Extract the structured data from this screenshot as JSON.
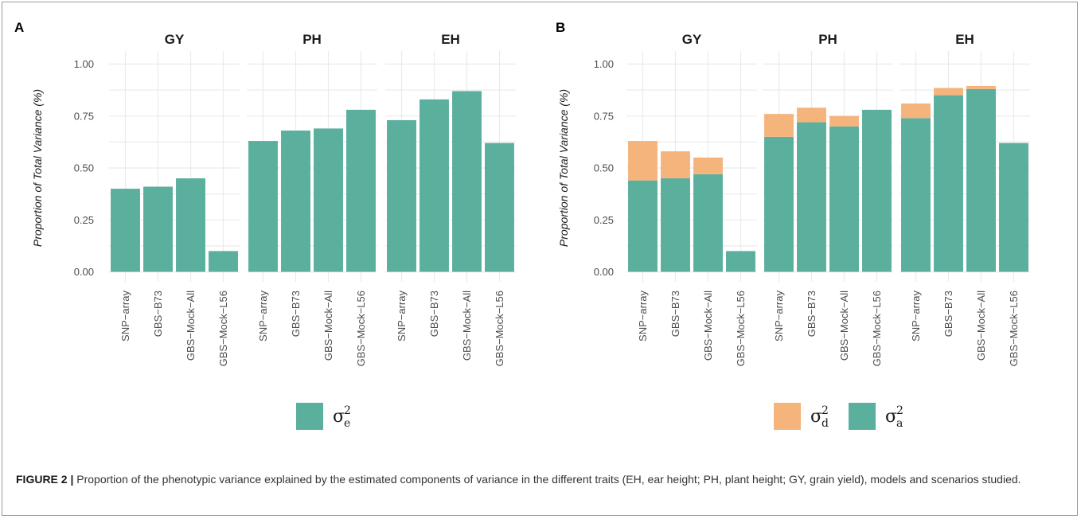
{
  "colors": {
    "sigma_e": "#5aaf9d",
    "sigma_a": "#5aaf9d",
    "sigma_d": "#f5b47c",
    "grid": "#ebebeb"
  },
  "chart_data": [
    {
      "type": "bar",
      "panel_label": "A",
      "ylabel": "Proportion of Total Variance (%)",
      "xlabel": "",
      "ylim": [
        0,
        1.05
      ],
      "yticks": [
        "0.00",
        "0.25",
        "0.50",
        "0.75",
        "1.00"
      ],
      "ytick_values": [
        0,
        0.25,
        0.5,
        0.75,
        1.0
      ],
      "grid": true,
      "legend_position": "bottom",
      "categories": [
        "SNP−array",
        "GBS−B73",
        "GBS−Mock−All",
        "GBS−Mock−L56"
      ],
      "facets": [
        {
          "title": "GY",
          "series": [
            {
              "name": "σe²",
              "key": "sigma_e",
              "values": [
                0.4,
                0.41,
                0.45,
                0.1
              ]
            }
          ]
        },
        {
          "title": "PH",
          "series": [
            {
              "name": "σe²",
              "key": "sigma_e",
              "values": [
                0.63,
                0.68,
                0.69,
                0.78
              ]
            }
          ]
        },
        {
          "title": "EH",
          "series": [
            {
              "name": "σe²",
              "key": "sigma_e",
              "values": [
                0.73,
                0.83,
                0.87,
                0.62
              ]
            }
          ]
        }
      ],
      "legend": [
        {
          "key": "sigma_e",
          "symbol": "σ",
          "sub": "e",
          "sup": "2"
        }
      ]
    },
    {
      "type": "bar",
      "stacked": true,
      "panel_label": "B",
      "ylabel": "Proportion of Total Variance (%)",
      "xlabel": "",
      "ylim": [
        0,
        1.05
      ],
      "yticks": [
        "0.00",
        "0.25",
        "0.50",
        "0.75",
        "1.00"
      ],
      "ytick_values": [
        0,
        0.25,
        0.5,
        0.75,
        1.0
      ],
      "grid": true,
      "legend_position": "bottom",
      "categories": [
        "SNP−array",
        "GBS−B73",
        "GBS−Mock−All",
        "GBS−Mock−L56"
      ],
      "facets": [
        {
          "title": "GY",
          "series": [
            {
              "name": "σa²",
              "key": "sigma_a",
              "values": [
                0.44,
                0.45,
                0.47,
                0.1
              ]
            },
            {
              "name": "σd²",
              "key": "sigma_d",
              "values": [
                0.19,
                0.13,
                0.08,
                0.0
              ]
            }
          ]
        },
        {
          "title": "PH",
          "series": [
            {
              "name": "σa²",
              "key": "sigma_a",
              "values": [
                0.65,
                0.72,
                0.7,
                0.78
              ]
            },
            {
              "name": "σd²",
              "key": "sigma_d",
              "values": [
                0.11,
                0.07,
                0.05,
                0.0
              ]
            }
          ]
        },
        {
          "title": "EH",
          "series": [
            {
              "name": "σa²",
              "key": "sigma_a",
              "values": [
                0.74,
                0.85,
                0.88,
                0.62
              ]
            },
            {
              "name": "σd²",
              "key": "sigma_d",
              "values": [
                0.07,
                0.035,
                0.015,
                0.0
              ]
            }
          ]
        }
      ],
      "legend": [
        {
          "key": "sigma_d",
          "symbol": "σ",
          "sub": "d",
          "sup": "2"
        },
        {
          "key": "sigma_a",
          "symbol": "σ",
          "sub": "a",
          "sup": "2"
        }
      ]
    }
  ],
  "caption": {
    "label": "FIGURE 2 |",
    "text": "Proportion of the phenotypic variance explained by the estimated components of variance in the different traits (EH, ear height; PH, plant height; GY, grain yield), models and scenarios studied."
  }
}
